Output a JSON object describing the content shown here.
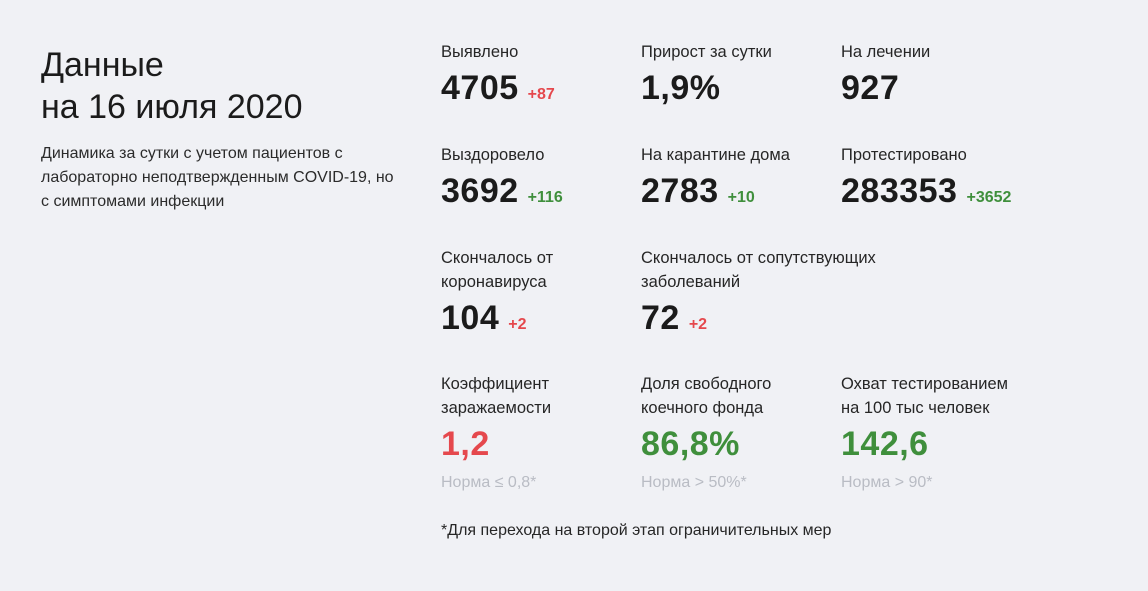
{
  "header": {
    "title_line1": "Данные",
    "title_line2": "на 16 июля 2020",
    "subtitle": "Динамика за сутки с учетом пациентов с лабораторно неподтвержденным COVID-19, но с симптомами инфекции"
  },
  "stats": {
    "detected": {
      "label": "Выявлено",
      "value": "4705",
      "delta": "+87"
    },
    "daily_growth": {
      "label": "Прирост за сутки",
      "value": "1,9%"
    },
    "in_treatment": {
      "label": "На лечении",
      "value": "927"
    },
    "recovered": {
      "label": "Выздоровело",
      "value": "3692",
      "delta": "+116"
    },
    "home_quarantine": {
      "label": "На карантине дома",
      "value": "2783",
      "delta": "+10"
    },
    "tested": {
      "label": "Протестировано",
      "value": "283353",
      "delta": "+3652"
    },
    "died_covid": {
      "label_line1": "Скончалось от",
      "label_line2": "коронавируса",
      "value": "104",
      "delta": "+2"
    },
    "died_comorbid": {
      "label_line1": "Скончалось от сопутствующих",
      "label_line2": "заболеваний",
      "value": "72",
      "delta": "+2"
    },
    "infection_rate": {
      "label_line1": "Коэффициент",
      "label_line2": "заражаемости",
      "value": "1,2",
      "norm": "Норма ≤ 0,8*"
    },
    "free_beds": {
      "label_line1": "Доля свободного",
      "label_line2": "коечного фонда",
      "value": "86,8%",
      "norm": "Норма > 50%*"
    },
    "testing_coverage": {
      "label_line1": "Охват тестированием",
      "label_line2": "на 100 тыс человек",
      "value": "142,6",
      "norm": "Норма > 90*"
    }
  },
  "footnote": "*Для перехода на второй этап ограничительных мер",
  "colors": {
    "background": "#f0f1f5",
    "negative": "#e5484d",
    "positive": "#3f8f3c",
    "muted": "#b9bcc4"
  }
}
